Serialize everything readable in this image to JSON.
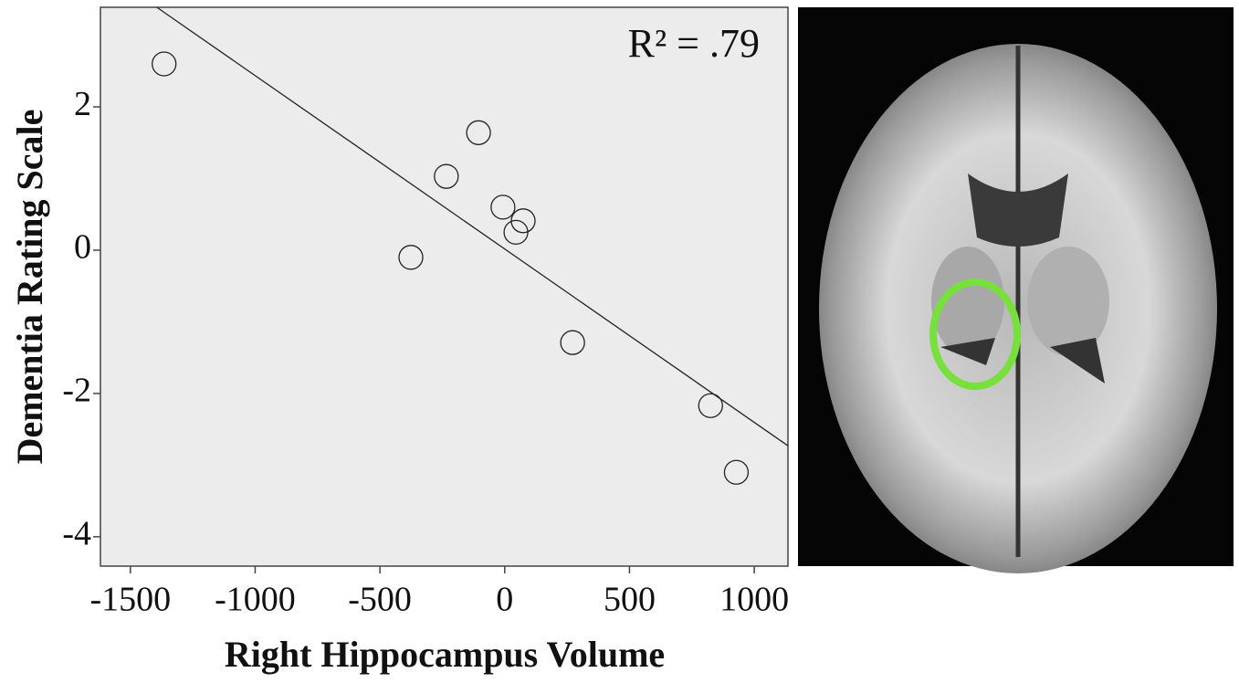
{
  "chart_data": {
    "type": "scatter",
    "xlabel": "Right Hippocampus Volume",
    "ylabel": "Dementia Rating Scale",
    "annotation": "R² = .79",
    "x": [
      -1365,
      -105,
      -234,
      -7,
      74,
      45,
      -376,
      272,
      825,
      928
    ],
    "y": [
      2.6,
      1.64,
      1.03,
      0.6,
      0.41,
      0.25,
      -0.1,
      -1.29,
      -2.17,
      -3.1
    ],
    "fit": {
      "x": [
        -1394,
        1135
      ],
      "y": [
        3.39,
        -2.73
      ]
    },
    "xlim": [
      -1620,
      1135
    ],
    "ylim": [
      -4.41,
      3.39
    ],
    "xticks": [
      -1500,
      -1000,
      -500,
      0,
      500,
      1000
    ],
    "yticks": [
      -4,
      -2,
      0,
      2
    ]
  }
}
